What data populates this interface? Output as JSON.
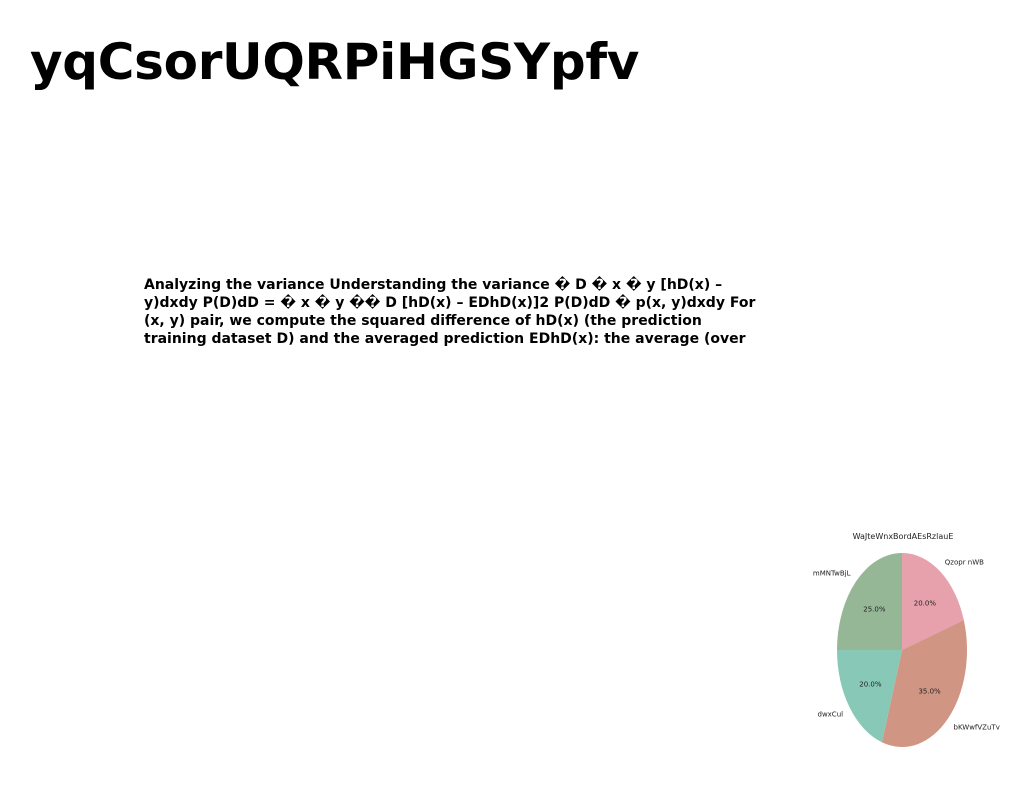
{
  "document": {
    "title": "yqCsorUQRPiHGSYpfv",
    "body_lines": [
      "Analyzing the variance Understanding the variance � D � x � y [hD(x) –",
      "y)dxdy P(D)dD = � x � y �� D [hD(x) – EDhD(x)]2 P(D)dD � p(x, y)dxdy For",
      "(x, y) pair, we compute the squared difference of hD(x) (the prediction",
      "training dataset D) and the averaged prediction EDhD(x): the average (over"
    ]
  },
  "chart_data": {
    "type": "pie",
    "title": "WaJteWnxBordAEsRzlauE",
    "start_angle_deg": 90,
    "direction": "clockwise",
    "slices": [
      {
        "label": "Qzopr nWB",
        "value": 20.0,
        "pct_label": "20.0%",
        "color": "#e6a1ad"
      },
      {
        "label": "bKWwfVZuTv",
        "value": 35.0,
        "pct_label": "35.0%",
        "color": "#d19584"
      },
      {
        "label": "dwxCul",
        "value": 20.0,
        "pct_label": "20.0%",
        "color": "#88c8b6"
      },
      {
        "label": "mMNTwBjL",
        "value": 25.0,
        "pct_label": "25.0%",
        "color": "#95b796"
      }
    ]
  }
}
